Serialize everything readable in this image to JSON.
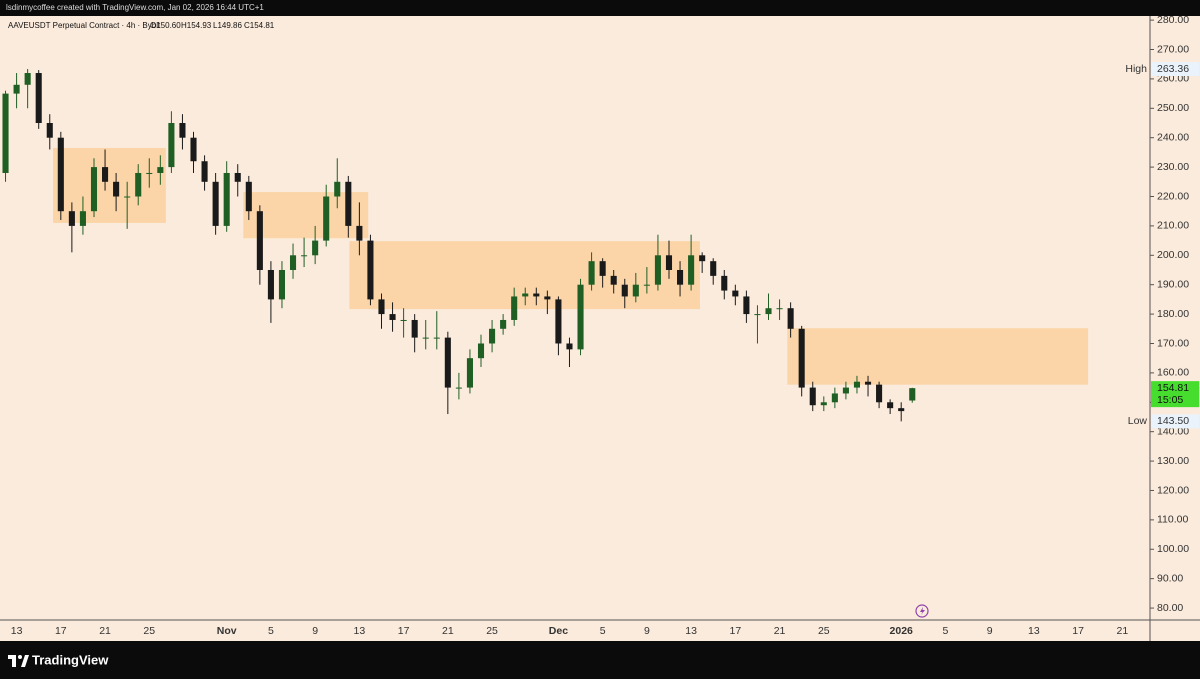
{
  "header": {
    "credit": "lsdinmycoffee created with TradingView.com, Jan 02, 2026 16:44 UTC+1",
    "symbol": "AAVEUSDT Perpetual Contract · 4h · Bybit",
    "ohlc": [
      "O150.60",
      "H154.93",
      "L149.86",
      "C154.81"
    ]
  },
  "footer": {
    "brand": "TradingView"
  },
  "chart_data": {
    "type": "candlestick",
    "categories": [
      null,
      "13",
      null,
      null,
      null,
      "17",
      null,
      null,
      null,
      "21",
      null,
      null,
      null,
      "25",
      null,
      null,
      null,
      null,
      null,
      null,
      "Nov",
      null,
      null,
      null,
      "5",
      null,
      null,
      null,
      "9",
      null,
      null,
      null,
      "13",
      null,
      null,
      null,
      "17",
      null,
      null,
      null,
      "21",
      null,
      null,
      null,
      "25",
      null,
      null,
      null,
      null,
      null,
      "Dec",
      null,
      null,
      null,
      "5",
      null,
      null,
      null,
      "9",
      null,
      null,
      null,
      "13",
      null,
      null,
      null,
      "17",
      null,
      null,
      null,
      "21",
      null,
      null,
      null,
      "25",
      null,
      null,
      null,
      null,
      null,
      null,
      "2026",
      null,
      null,
      null,
      "5",
      null,
      null,
      null,
      "9",
      null,
      null,
      null,
      "13",
      null,
      null,
      null,
      "17",
      null,
      null,
      null,
      "21",
      null,
      null
    ],
    "values": [
      [
        228,
        256,
        225,
        255
      ],
      [
        255,
        262,
        250,
        258
      ],
      [
        258,
        263.36,
        250,
        262
      ],
      [
        262,
        263,
        243,
        245
      ],
      [
        245,
        248,
        236,
        240
      ],
      [
        240,
        242,
        212,
        215
      ],
      [
        215,
        218,
        201,
        210
      ],
      [
        210,
        220,
        207,
        215
      ],
      [
        215,
        233,
        213,
        230
      ],
      [
        230,
        236,
        222,
        225
      ],
      [
        225,
        228,
        215,
        220
      ],
      [
        220,
        225,
        209,
        220
      ],
      [
        220,
        231,
        217,
        228
      ],
      [
        228,
        233,
        223,
        228
      ],
      [
        228,
        234,
        224,
        230
      ],
      [
        230,
        249,
        228,
        245
      ],
      [
        245,
        248,
        236,
        240
      ],
      [
        240,
        242,
        228,
        232
      ],
      [
        232,
        234,
        222,
        225
      ],
      [
        225,
        228,
        207,
        210
      ],
      [
        210,
        232,
        208,
        228
      ],
      [
        228,
        231,
        220,
        225
      ],
      [
        225,
        227,
        212,
        215
      ],
      [
        215,
        217,
        190,
        195
      ],
      [
        195,
        198,
        177,
        185
      ],
      [
        185,
        198,
        182,
        195
      ],
      [
        195,
        204,
        192,
        200
      ],
      [
        200,
        206,
        196,
        200
      ],
      [
        200,
        210,
        197,
        205
      ],
      [
        205,
        224,
        203,
        220
      ],
      [
        220,
        233,
        216,
        225
      ],
      [
        225,
        227,
        206,
        210
      ],
      [
        210,
        218,
        200,
        205
      ],
      [
        205,
        207,
        183,
        185
      ],
      [
        185,
        187,
        175,
        180
      ],
      [
        180,
        184,
        174,
        178
      ],
      [
        178,
        182,
        172,
        178
      ],
      [
        178,
        180,
        167,
        172
      ],
      [
        172,
        178,
        168,
        172
      ],
      [
        172,
        181,
        168,
        172
      ],
      [
        172,
        174,
        146,
        155
      ],
      [
        155,
        160,
        151,
        155
      ],
      [
        155,
        168,
        153,
        165
      ],
      [
        165,
        173,
        162,
        170
      ],
      [
        170,
        178,
        167,
        175
      ],
      [
        175,
        180,
        173,
        178
      ],
      [
        178,
        189,
        176,
        186
      ],
      [
        186,
        189,
        183,
        187
      ],
      [
        187,
        189,
        183,
        186
      ],
      [
        186,
        188,
        180,
        185
      ],
      [
        185,
        186,
        166,
        170
      ],
      [
        170,
        172,
        162,
        168
      ],
      [
        168,
        192,
        166,
        190
      ],
      [
        190,
        201,
        188,
        198
      ],
      [
        198,
        199,
        189,
        193
      ],
      [
        193,
        195,
        187,
        190
      ],
      [
        190,
        192,
        182,
        186
      ],
      [
        186,
        194,
        184,
        190
      ],
      [
        190,
        196,
        187,
        190
      ],
      [
        190,
        207,
        188,
        200
      ],
      [
        200,
        205,
        192,
        195
      ],
      [
        195,
        198,
        186,
        190
      ],
      [
        190,
        207,
        188,
        200
      ],
      [
        200,
        201,
        194,
        198
      ],
      [
        198,
        199,
        190,
        193
      ],
      [
        193,
        195,
        185,
        188
      ],
      [
        188,
        190,
        183,
        186
      ],
      [
        186,
        188,
        177,
        180
      ],
      [
        180,
        183,
        170,
        180
      ],
      [
        180,
        187,
        178,
        182
      ],
      [
        182,
        185,
        178,
        182
      ],
      [
        182,
        184,
        172,
        175
      ],
      [
        175,
        176,
        152,
        155
      ],
      [
        155,
        157,
        147,
        149
      ],
      [
        149,
        152,
        147,
        150
      ],
      [
        150,
        155,
        148,
        153
      ],
      [
        153,
        157,
        151,
        155
      ],
      [
        155,
        159,
        153,
        157
      ],
      [
        157,
        159,
        152,
        156
      ],
      [
        156,
        157,
        148,
        150
      ],
      [
        150,
        151,
        146,
        148
      ],
      [
        148,
        150,
        143.5,
        147
      ],
      [
        150.6,
        154.93,
        149.86,
        154.81
      ],
      null,
      null,
      null,
      null,
      null,
      null,
      null,
      null,
      null,
      null,
      null,
      null,
      null,
      null,
      null,
      null,
      null,
      null,
      null,
      null,
      null
    ],
    "up_color": "#1f5f24",
    "down_color": "#1a1a1a",
    "ylim": [
      77.3,
      281.4
    ],
    "yticks": [
      {
        "value": 80,
        "label": "80.00"
      },
      {
        "value": 90,
        "label": "90.00"
      },
      {
        "value": 100,
        "label": "100.00"
      },
      {
        "value": 110,
        "label": "110.00"
      },
      {
        "value": 120,
        "label": "120.00"
      },
      {
        "value": 130,
        "label": "130.00"
      },
      {
        "value": 140,
        "label": "140.00"
      },
      {
        "value": 150,
        "label": "150.00"
      },
      {
        "value": 160,
        "label": "160.00"
      },
      {
        "value": 170,
        "label": "170.00"
      },
      {
        "value": 180,
        "label": "180.00"
      },
      {
        "value": 190,
        "label": "190.00"
      },
      {
        "value": 200,
        "label": "200.00"
      },
      {
        "value": 210,
        "label": "210.00"
      },
      {
        "value": 220,
        "label": "220.00"
      },
      {
        "value": 230,
        "label": "230.00"
      },
      {
        "value": 240,
        "label": "240.00"
      },
      {
        "value": 250,
        "label": "250.00"
      },
      {
        "value": 260,
        "label": "260.00"
      },
      {
        "value": 270,
        "label": "270.00"
      },
      {
        "value": 280,
        "label": "280.00"
      }
    ],
    "zones": [
      {
        "price": [
          236.5,
          211
        ],
        "x": [
          4.3,
          14.5
        ]
      },
      {
        "price": [
          221.5,
          205.8
        ],
        "x": [
          21.5,
          32.8
        ]
      },
      {
        "price": [
          204.8,
          181.7
        ],
        "x": [
          31.1,
          62.8
        ]
      },
      {
        "price": [
          175.2,
          156
        ],
        "x": [
          70.7,
          97.9
        ]
      }
    ],
    "zone_color": "#fbd3a2",
    "markers": {
      "high": {
        "text": "High",
        "value": 263.36
      },
      "low": {
        "text": "Low",
        "value": 143.5,
        "label": "143.50"
      },
      "last": {
        "value": 154.81,
        "countdown": "15:05",
        "color": "#46dd2e"
      }
    }
  }
}
